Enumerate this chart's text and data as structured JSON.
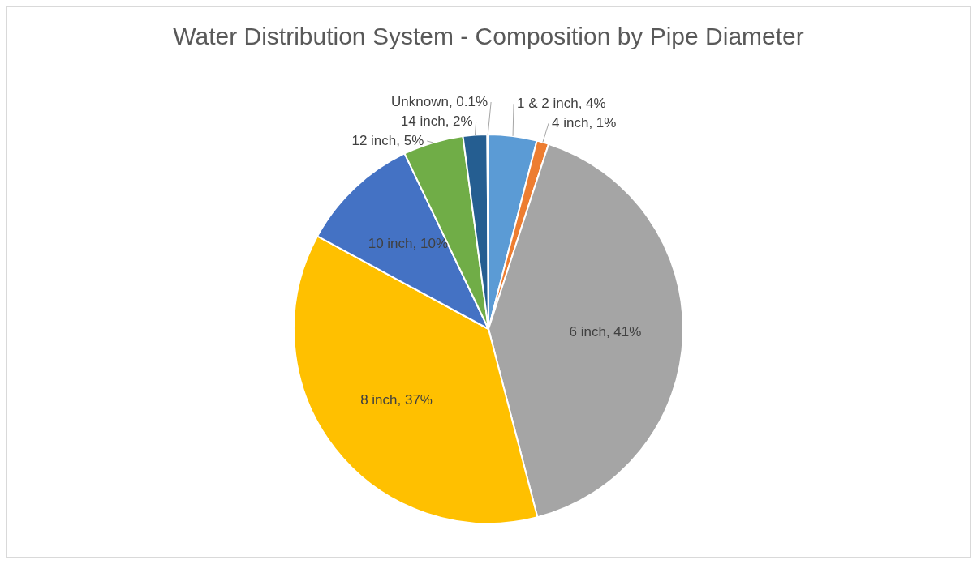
{
  "chart_data": {
    "type": "pie",
    "title": "Water Distribution System - Composition by Pipe Diameter",
    "categories": [
      "1 & 2 inch",
      "4 inch",
      "6 inch",
      "8 inch",
      "10 inch",
      "12 inch",
      "14 inch",
      "Unknown"
    ],
    "values": [
      4,
      1,
      41,
      37,
      10,
      5,
      2,
      0.1
    ],
    "value_labels": [
      "4%",
      "1%",
      "41%",
      "37%",
      "10%",
      "5%",
      "2%",
      "0.1%"
    ],
    "colors": [
      "#5b9bd5",
      "#ed7d31",
      "#a5a5a5",
      "#ffc000",
      "#4472c4",
      "#70ad47",
      "#255e91",
      "#9e480e"
    ],
    "legend": false
  }
}
